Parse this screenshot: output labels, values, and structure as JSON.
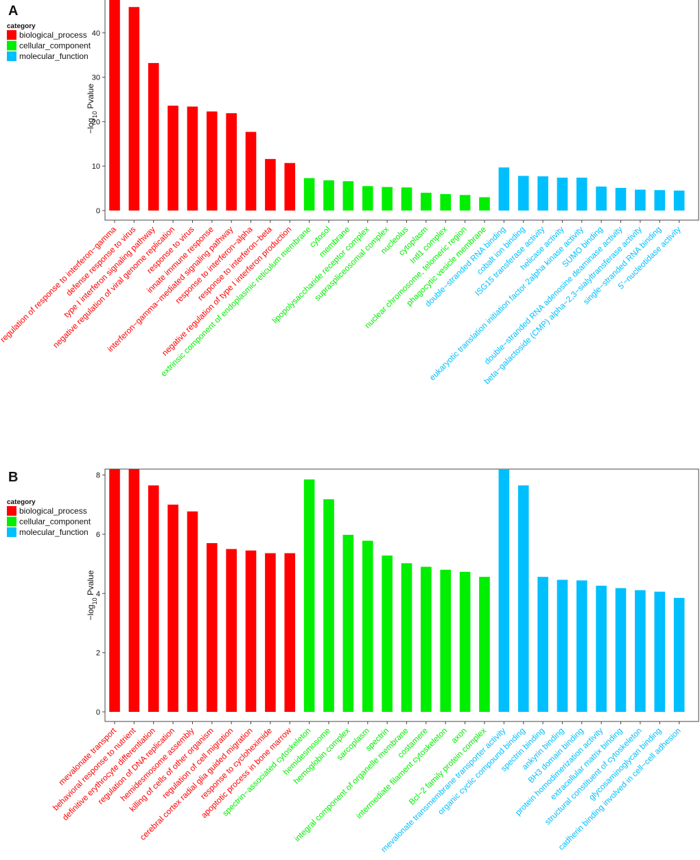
{
  "colors": {
    "biological_process": "#ff0000",
    "cellular_component": "#00ee00",
    "molecular_function": "#00bfff"
  },
  "legend": {
    "title": "category",
    "items": [
      {
        "key": "biological_process",
        "label": "biological_process"
      },
      {
        "key": "cellular_component",
        "label": "cellular_component"
      },
      {
        "key": "molecular_function",
        "label": "molecular_function"
      }
    ]
  },
  "chart_data": [
    {
      "panel": "A",
      "type": "bar",
      "ylabel_prefix": "−log",
      "ylabel_sub": "10",
      "ylabel_suffix": " Pvalue",
      "ylim": [
        0,
        48
      ],
      "yticks": [
        0,
        10,
        20,
        30,
        40
      ],
      "grid": false,
      "legend_position": "top-left",
      "categories": [
        "regulation of response to interferon−gamma",
        "defense response to virus",
        "type I interferon signaling pathway",
        "negative regulation of viral genome replication",
        "response to virus",
        "innate immune response",
        "interferon−gamma−mediated signaling pathway",
        "response to interferon−alpha",
        "response to interferon−beta",
        "negative regulation of type I interferon production",
        "extrinsic component of endoplasmic reticulum membrane",
        "cytosol",
        "membrane",
        "lipopolysaccharide receptor complex",
        "supraspliceosomal complex",
        "nucleolus",
        "cytoplasm",
        "Intl1 complex",
        "nuclear chromosome, telomeric region",
        "phagocytic vesicle membrane",
        "double−stranded RNA binding",
        "cobalt ion binding",
        "ISG15 transferase activity",
        "helicase activity",
        "eukaryotic translation initiation factor 2alpha kinase activity",
        "SUMO binding",
        "double−stranded RNA adenosine deaminase activity",
        "beta−galactoside (CMP) alpha−2,3−sialyltransferase activity",
        "single−stranded RNA binding",
        "5'−nucleotidase activity"
      ],
      "values": [
        48.5,
        45.8,
        33.2,
        23.6,
        23.4,
        22.3,
        21.9,
        17.7,
        11.6,
        10.7,
        7.3,
        6.8,
        6.6,
        5.5,
        5.3,
        5.2,
        4.0,
        3.7,
        3.5,
        3.0,
        9.7,
        7.8,
        7.7,
        7.4,
        7.4,
        5.4,
        5.1,
        4.7,
        4.6,
        4.5
      ],
      "groups": [
        "biological_process",
        "biological_process",
        "biological_process",
        "biological_process",
        "biological_process",
        "biological_process",
        "biological_process",
        "biological_process",
        "biological_process",
        "biological_process",
        "cellular_component",
        "cellular_component",
        "cellular_component",
        "cellular_component",
        "cellular_component",
        "cellular_component",
        "cellular_component",
        "cellular_component",
        "cellular_component",
        "cellular_component",
        "molecular_function",
        "molecular_function",
        "molecular_function",
        "molecular_function",
        "molecular_function",
        "molecular_function",
        "molecular_function",
        "molecular_function",
        "molecular_function",
        "molecular_function"
      ]
    },
    {
      "panel": "B",
      "type": "bar",
      "ylabel_prefix": "−log",
      "ylabel_sub": "10",
      "ylabel_suffix": " Pvalue",
      "ylim": [
        0,
        8.2
      ],
      "yticks": [
        0,
        2,
        4,
        6,
        8
      ],
      "grid": false,
      "legend_position": "top-left",
      "categories": [
        "mevalonate transport",
        "behavioral response to nutrient",
        "definitive erythrocyte differentiation",
        "regulation of DNA replication",
        "hemidesmosome assembly",
        "killing of cells of other organism",
        "regulation of cell migration",
        "cerebral cortex radial glia guided migration",
        "response to cycloheximide",
        "apoptotic process in bone marrow",
        "spectrin−associated cytoskeleton",
        "hemidesmosome",
        "hemoglobin complex",
        "sarcoplasm",
        "spectrin",
        "integral component of organelle membrane",
        "costamere",
        "intermediate filament cytoskeleton",
        "axon",
        "Bcl−2 family protein complex",
        "mevalonate transmembrane transporter activity",
        "organic cyclic compound binding",
        "spectrin binding",
        "ankyrin binding",
        "BH3 domain binding",
        "protein homodimerization activity",
        "extracellular matrix binding",
        "structural constituent of cytoskeleton",
        "glycosaminoglycan binding",
        "cadherin binding involved in cell−cell adhesion"
      ],
      "values": [
        8.3,
        8.3,
        7.65,
        7.0,
        6.77,
        5.7,
        5.5,
        5.45,
        5.36,
        5.36,
        7.85,
        7.18,
        5.98,
        5.78,
        5.28,
        5.02,
        4.9,
        4.8,
        4.73,
        4.56,
        8.3,
        7.65,
        4.56,
        4.46,
        4.44,
        4.26,
        4.18,
        4.11,
        4.06,
        3.85
      ],
      "groups": [
        "biological_process",
        "biological_process",
        "biological_process",
        "biological_process",
        "biological_process",
        "biological_process",
        "biological_process",
        "biological_process",
        "biological_process",
        "biological_process",
        "cellular_component",
        "cellular_component",
        "cellular_component",
        "cellular_component",
        "cellular_component",
        "cellular_component",
        "cellular_component",
        "cellular_component",
        "cellular_component",
        "cellular_component",
        "molecular_function",
        "molecular_function",
        "molecular_function",
        "molecular_function",
        "molecular_function",
        "molecular_function",
        "molecular_function",
        "molecular_function",
        "molecular_function",
        "molecular_function"
      ]
    }
  ]
}
